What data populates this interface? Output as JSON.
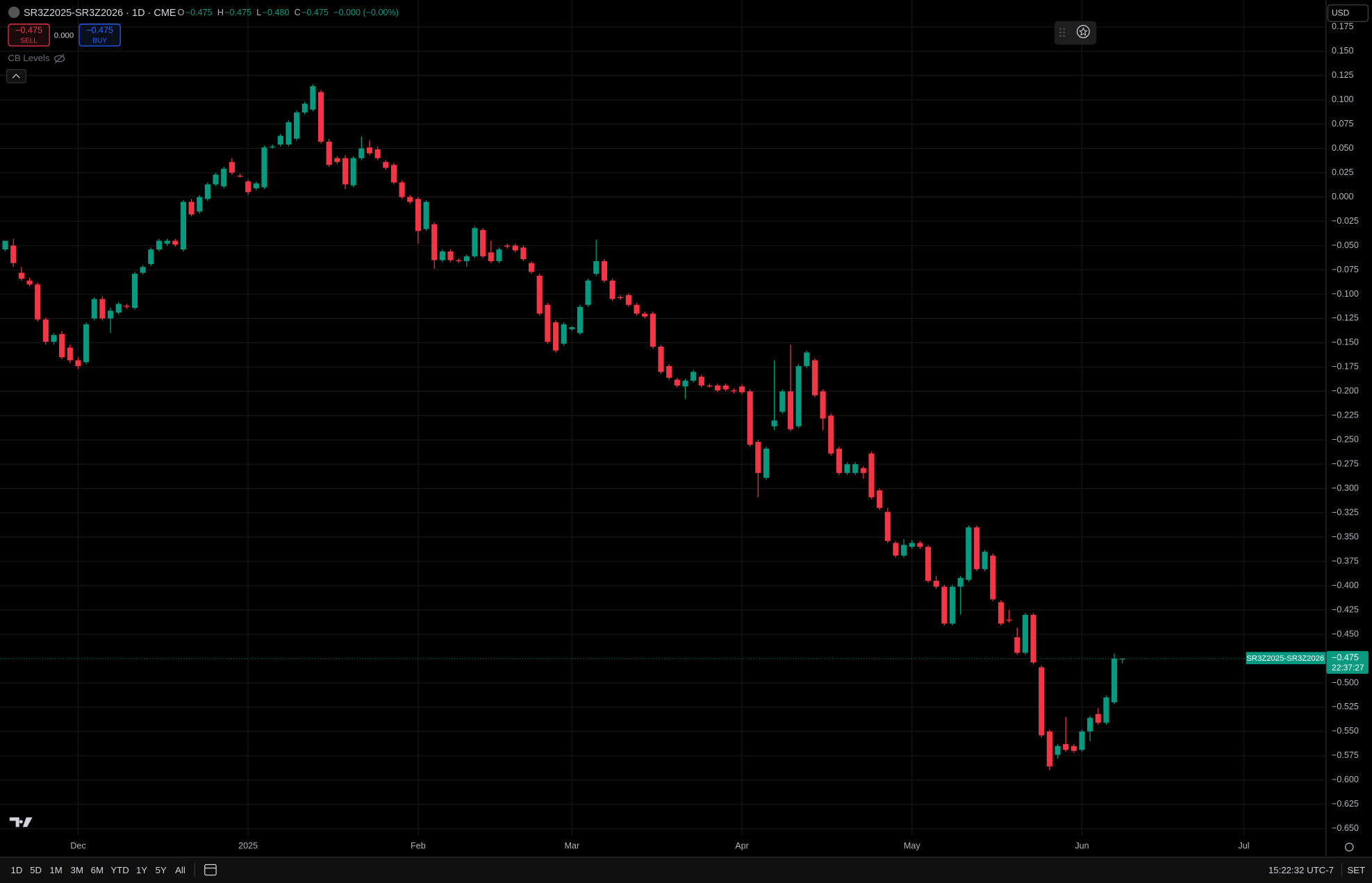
{
  "header": {
    "symbol": "SR3Z2025-SR3Z2026 · 1D · CME",
    "ohlc": [
      {
        "key": "O",
        "value": "−0.475"
      },
      {
        "key": "H",
        "value": "−0.475"
      },
      {
        "key": "L",
        "value": "−0.480"
      },
      {
        "key": "C",
        "value": "−0.475"
      }
    ],
    "change": "−0.000 (−0.00%)",
    "sell_price": "−0.475",
    "sell": "SELL",
    "spread": "0.000",
    "buy_price": "−0.475",
    "buy": "BUY",
    "indicator": "CB Levels",
    "currency": "USD"
  },
  "chart_data": {
    "type": "candlestick",
    "up_color": "#089981",
    "down_color": "#f23645",
    "grid": true,
    "series_label": "SR3Z2025-SR3Z2026",
    "last_label": "−0.475",
    "countdown": "22:37:27",
    "xlim": [
      -0.65,
      163.1
    ],
    "xticks": [
      {
        "value": 9,
        "label": "Dec"
      },
      {
        "value": 30,
        "label": "2025"
      },
      {
        "value": 51,
        "label": "Feb"
      },
      {
        "value": 70,
        "label": "Mar"
      },
      {
        "value": 91,
        "label": "Apr"
      },
      {
        "value": 112,
        "label": "May"
      },
      {
        "value": 133,
        "label": "Jun"
      },
      {
        "value": 153,
        "label": "Jul"
      }
    ],
    "ylim": [
      -0.678,
      0.2027
    ],
    "yticks": [
      {
        "value": 0.175,
        "label": "0.175"
      },
      {
        "value": 0.15,
        "label": "0.150"
      },
      {
        "value": 0.125,
        "label": "0.125"
      },
      {
        "value": 0.1,
        "label": "0.100"
      },
      {
        "value": 0.075,
        "label": "0.075"
      },
      {
        "value": 0.05,
        "label": "0.050"
      },
      {
        "value": 0.025,
        "label": "0.025"
      },
      {
        "value": 0,
        "label": "0.000"
      },
      {
        "value": -0.025,
        "label": "−0.025"
      },
      {
        "value": -0.05,
        "label": "−0.050"
      },
      {
        "value": -0.075,
        "label": "−0.075"
      },
      {
        "value": -0.1,
        "label": "−0.100"
      },
      {
        "value": -0.125,
        "label": "−0.125"
      },
      {
        "value": -0.15,
        "label": "−0.150"
      },
      {
        "value": -0.175,
        "label": "−0.175"
      },
      {
        "value": -0.2,
        "label": "−0.200"
      },
      {
        "value": -0.225,
        "label": "−0.225"
      },
      {
        "value": -0.25,
        "label": "−0.250"
      },
      {
        "value": -0.275,
        "label": "−0.275"
      },
      {
        "value": -0.3,
        "label": "−0.300"
      },
      {
        "value": -0.325,
        "label": "−0.325"
      },
      {
        "value": -0.35,
        "label": "−0.350"
      },
      {
        "value": -0.375,
        "label": "−0.375"
      },
      {
        "value": -0.4,
        "label": "−0.400"
      },
      {
        "value": -0.425,
        "label": "−0.425"
      },
      {
        "value": -0.45,
        "label": "−0.450"
      },
      {
        "value": -0.5,
        "label": "−0.500"
      },
      {
        "value": -0.525,
        "label": "−0.525"
      },
      {
        "value": -0.55,
        "label": "−0.550"
      },
      {
        "value": -0.575,
        "label": "−0.575"
      },
      {
        "value": -0.6,
        "label": "−0.600"
      },
      {
        "value": -0.625,
        "label": "−0.625"
      },
      {
        "value": -0.65,
        "label": "−0.650"
      }
    ],
    "candles": [
      [
        -0.054,
        -0.045,
        -0.056,
        -0.045
      ],
      [
        -0.05,
        -0.043,
        -0.072,
        -0.068
      ],
      [
        -0.078,
        -0.072,
        -0.086,
        -0.084
      ],
      [
        -0.086,
        -0.083,
        -0.092,
        -0.09
      ],
      [
        -0.09,
        -0.088,
        -0.128,
        -0.126
      ],
      [
        -0.126,
        -0.124,
        -0.152,
        -0.149
      ],
      [
        -0.149,
        -0.14,
        -0.152,
        -0.142
      ],
      [
        -0.141,
        -0.138,
        -0.167,
        -0.165
      ],
      [
        -0.155,
        -0.152,
        -0.171,
        -0.168
      ],
      [
        -0.168,
        -0.165,
        -0.177,
        -0.174
      ],
      [
        -0.17,
        -0.129,
        -0.172,
        -0.131
      ],
      [
        -0.125,
        -0.103,
        -0.127,
        -0.105
      ],
      [
        -0.105,
        -0.102,
        -0.127,
        -0.125
      ],
      [
        -0.125,
        -0.114,
        -0.14,
        -0.117
      ],
      [
        -0.119,
        -0.108,
        -0.121,
        -0.11
      ],
      [
        -0.112,
        -0.11,
        -0.115,
        -0.113
      ],
      [
        -0.114,
        -0.077,
        -0.116,
        -0.079
      ],
      [
        -0.078,
        -0.07,
        -0.08,
        -0.072
      ],
      [
        -0.069,
        -0.052,
        -0.071,
        -0.054
      ],
      [
        -0.054,
        -0.043,
        -0.056,
        -0.045
      ],
      [
        -0.048,
        -0.043,
        -0.05,
        -0.045
      ],
      [
        -0.045,
        -0.043,
        -0.051,
        -0.049
      ],
      [
        -0.054,
        -0.003,
        -0.056,
        -0.005
      ],
      [
        -0.005,
        -0.002,
        -0.02,
        -0.018
      ],
      [
        -0.015,
        0.002,
        -0.017,
        0.0
      ],
      [
        -0.002,
        0.015,
        -0.004,
        0.013
      ],
      [
        0.013,
        0.025,
        0.011,
        0.023
      ],
      [
        0.011,
        0.031,
        0.009,
        0.029
      ],
      [
        0.036,
        0.04,
        0.023,
        0.025
      ],
      [
        0.022,
        0.024,
        0.02,
        0.021
      ],
      [
        0.016,
        0.018,
        0.002,
        0.005
      ],
      [
        0.009,
        0.016,
        0.007,
        0.014
      ],
      [
        0.01,
        0.053,
        0.008,
        0.051
      ],
      [
        0.051,
        0.054,
        0.05,
        0.052
      ],
      [
        0.054,
        0.065,
        0.052,
        0.063
      ],
      [
        0.054,
        0.079,
        0.052,
        0.077
      ],
      [
        0.06,
        0.089,
        0.058,
        0.087
      ],
      [
        0.087,
        0.098,
        0.085,
        0.096
      ],
      [
        0.09,
        0.116,
        0.088,
        0.114
      ],
      [
        0.108,
        0.11,
        0.055,
        0.057
      ],
      [
        0.057,
        0.06,
        0.031,
        0.033
      ],
      [
        0.04,
        0.042,
        0.034,
        0.036
      ],
      [
        0.04,
        0.043,
        0.008,
        0.013
      ],
      [
        0.012,
        0.042,
        0.01,
        0.04
      ],
      [
        0.04,
        0.062,
        0.038,
        0.05
      ],
      [
        0.051,
        0.058,
        0.043,
        0.045
      ],
      [
        0.049,
        0.052,
        0.038,
        0.04
      ],
      [
        0.036,
        0.038,
        0.028,
        0.03
      ],
      [
        0.033,
        0.035,
        0.013,
        0.015
      ],
      [
        0.015,
        0.017,
        -0.002,
        0.0
      ],
      [
        0.0,
        0.002,
        -0.007,
        -0.005
      ],
      [
        -0.002,
        0.0,
        -0.048,
        -0.035
      ],
      [
        -0.033,
        -0.003,
        -0.035,
        -0.005
      ],
      [
        -0.028,
        -0.026,
        -0.074,
        -0.065
      ],
      [
        -0.065,
        -0.054,
        -0.067,
        -0.056
      ],
      [
        -0.056,
        -0.054,
        -0.067,
        -0.065
      ],
      [
        -0.065,
        -0.063,
        -0.068,
        -0.066
      ],
      [
        -0.066,
        -0.059,
        -0.072,
        -0.061
      ],
      [
        -0.061,
        -0.03,
        -0.063,
        -0.032
      ],
      [
        -0.034,
        -0.032,
        -0.063,
        -0.061
      ],
      [
        -0.057,
        -0.045,
        -0.068,
        -0.066
      ],
      [
        -0.066,
        -0.052,
        -0.068,
        -0.054
      ],
      [
        -0.05,
        -0.048,
        -0.053,
        -0.051
      ],
      [
        -0.05,
        -0.048,
        -0.057,
        -0.055
      ],
      [
        -0.052,
        -0.05,
        -0.066,
        -0.064
      ],
      [
        -0.068,
        -0.066,
        -0.079,
        -0.077
      ],
      [
        -0.081,
        -0.079,
        -0.122,
        -0.12
      ],
      [
        -0.111,
        -0.109,
        -0.151,
        -0.149
      ],
      [
        -0.129,
        -0.127,
        -0.16,
        -0.158
      ],
      [
        -0.151,
        -0.129,
        -0.153,
        -0.131
      ],
      [
        -0.136,
        -0.133,
        -0.138,
        -0.134
      ],
      [
        -0.14,
        -0.111,
        -0.142,
        -0.113
      ],
      [
        -0.111,
        -0.084,
        -0.113,
        -0.086
      ],
      [
        -0.079,
        -0.044,
        -0.081,
        -0.066
      ],
      [
        -0.066,
        -0.064,
        -0.088,
        -0.086
      ],
      [
        -0.086,
        -0.084,
        -0.107,
        -0.105
      ],
      [
        -0.103,
        -0.101,
        -0.106,
        -0.104
      ],
      [
        -0.101,
        -0.099,
        -0.113,
        -0.111
      ],
      [
        -0.111,
        -0.109,
        -0.122,
        -0.12
      ],
      [
        -0.12,
        -0.118,
        -0.125,
        -0.123
      ],
      [
        -0.12,
        -0.118,
        -0.156,
        -0.154
      ],
      [
        -0.154,
        -0.152,
        -0.182,
        -0.18
      ],
      [
        -0.174,
        -0.172,
        -0.188,
        -0.186
      ],
      [
        -0.188,
        -0.186,
        -0.196,
        -0.194
      ],
      [
        -0.195,
        -0.187,
        -0.208,
        -0.189
      ],
      [
        -0.189,
        -0.178,
        -0.191,
        -0.18
      ],
      [
        -0.185,
        -0.183,
        -0.196,
        -0.194
      ],
      [
        -0.194,
        -0.192,
        -0.196,
        -0.195
      ],
      [
        -0.194,
        -0.192,
        -0.201,
        -0.199
      ],
      [
        -0.194,
        -0.192,
        -0.2,
        -0.198
      ],
      [
        -0.199,
        -0.197,
        -0.202,
        -0.2
      ],
      [
        -0.195,
        -0.193,
        -0.203,
        -0.201
      ],
      [
        -0.2,
        -0.198,
        -0.257,
        -0.255
      ],
      [
        -0.252,
        -0.25,
        -0.309,
        -0.284
      ],
      [
        -0.289,
        -0.257,
        -0.291,
        -0.259
      ],
      [
        -0.236,
        -0.168,
        -0.24,
        -0.23
      ],
      [
        -0.221,
        -0.198,
        -0.223,
        -0.2
      ],
      [
        -0.2,
        -0.152,
        -0.241,
        -0.239
      ],
      [
        -0.236,
        -0.172,
        -0.238,
        -0.174
      ],
      [
        -0.174,
        -0.158,
        -0.176,
        -0.16
      ],
      [
        -0.168,
        -0.166,
        -0.206,
        -0.204
      ],
      [
        -0.2,
        -0.198,
        -0.24,
        -0.228
      ],
      [
        -0.225,
        -0.223,
        -0.266,
        -0.264
      ],
      [
        -0.259,
        -0.257,
        -0.286,
        -0.284
      ],
      [
        -0.284,
        -0.273,
        -0.286,
        -0.275
      ],
      [
        -0.284,
        -0.273,
        -0.286,
        -0.275
      ],
      [
        -0.279,
        -0.277,
        -0.29,
        -0.284
      ],
      [
        -0.264,
        -0.262,
        -0.311,
        -0.309
      ],
      [
        -0.302,
        -0.3,
        -0.322,
        -0.32
      ],
      [
        -0.324,
        -0.32,
        -0.356,
        -0.354
      ],
      [
        -0.356,
        -0.354,
        -0.371,
        -0.369
      ],
      [
        -0.369,
        -0.352,
        -0.371,
        -0.358
      ],
      [
        -0.36,
        -0.353,
        -0.362,
        -0.356
      ],
      [
        -0.356,
        -0.354,
        -0.362,
        -0.36
      ],
      [
        -0.36,
        -0.358,
        -0.397,
        -0.395
      ],
      [
        -0.395,
        -0.39,
        -0.403,
        -0.401
      ],
      [
        -0.401,
        -0.399,
        -0.441,
        -0.439
      ],
      [
        -0.439,
        -0.399,
        -0.441,
        -0.401
      ],
      [
        -0.401,
        -0.39,
        -0.43,
        -0.392
      ],
      [
        -0.394,
        -0.338,
        -0.396,
        -0.34
      ],
      [
        -0.34,
        -0.338,
        -0.385,
        -0.383
      ],
      [
        -0.383,
        -0.363,
        -0.385,
        -0.365
      ],
      [
        -0.369,
        -0.367,
        -0.416,
        -0.414
      ],
      [
        -0.417,
        -0.415,
        -0.441,
        -0.439
      ],
      [
        -0.435,
        -0.425,
        -0.438,
        -0.436
      ],
      [
        -0.453,
        -0.443,
        -0.471,
        -0.469
      ],
      [
        -0.469,
        -0.428,
        -0.471,
        -0.43
      ],
      [
        -0.43,
        -0.428,
        -0.481,
        -0.479
      ],
      [
        -0.484,
        -0.482,
        -0.556,
        -0.554
      ],
      [
        -0.55,
        -0.548,
        -0.59,
        -0.586
      ],
      [
        -0.574,
        -0.563,
        -0.578,
        -0.565
      ],
      [
        -0.563,
        -0.535,
        -0.571,
        -0.569
      ],
      [
        -0.565,
        -0.563,
        -0.572,
        -0.57
      ],
      [
        -0.569,
        -0.548,
        -0.571,
        -0.55
      ],
      [
        -0.55,
        -0.534,
        -0.56,
        -0.536
      ],
      [
        -0.532,
        -0.526,
        -0.543,
        -0.541
      ],
      [
        -0.541,
        -0.513,
        -0.543,
        -0.515
      ],
      [
        -0.52,
        -0.47,
        -0.522,
        -0.475
      ],
      [
        -0.475,
        -0.475,
        -0.48,
        -0.475
      ]
    ]
  },
  "toolbar": {
    "ranges": [
      "1D",
      "5D",
      "1M",
      "3M",
      "6M",
      "YTD",
      "1Y",
      "5Y",
      "All"
    ],
    "clock": "15:22:32 UTC-7",
    "settings": "SET"
  }
}
